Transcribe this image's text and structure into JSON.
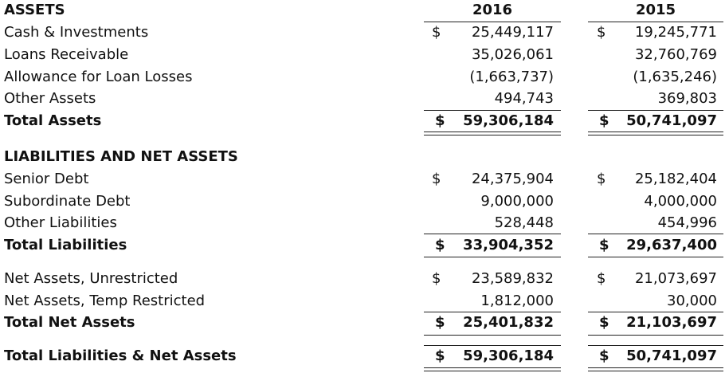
{
  "header": {
    "title": "ASSETS",
    "year1": "2016",
    "year2": "2015"
  },
  "assets": [
    {
      "label": "Cash & Investments",
      "v1": "25,449,117",
      "v2": "19,245,771",
      "dollar": true
    },
    {
      "label": "Loans Receivable",
      "v1": "35,026,061",
      "v2": "32,760,769"
    },
    {
      "label": "Allowance for Loan Losses",
      "v1": "(1,663,737)",
      "v2": "(1,635,246)"
    },
    {
      "label": "Other Assets",
      "v1": "494,743",
      "v2": "369,803"
    }
  ],
  "total_assets": {
    "label": "Total Assets",
    "v1": "59,306,184",
    "v2": "50,741,097"
  },
  "liabilities_heading": "LIABILITIES AND NET ASSETS",
  "liabilities": [
    {
      "label": "Senior Debt",
      "v1": "24,375,904",
      "v2": "25,182,404",
      "dollar": true
    },
    {
      "label": "Subordinate Debt",
      "v1": "9,000,000",
      "v2": "4,000,000"
    },
    {
      "label": "Other Liabilities",
      "v1": "528,448",
      "v2": "454,996"
    }
  ],
  "total_liabilities": {
    "label": "Total Liabilities",
    "v1": "33,904,352",
    "v2": "29,637,400"
  },
  "net_assets": [
    {
      "label": "Net Assets, Unrestricted",
      "v1": "23,589,832",
      "v2": "21,073,697",
      "dollar": true
    },
    {
      "label": "Net Assets, Temp Restricted",
      "v1": "1,812,000",
      "v2": "30,000"
    }
  ],
  "total_net_assets": {
    "label": "Total Net Assets",
    "v1": "25,401,832",
    "v2": "21,103,697"
  },
  "total_liab_net": {
    "label": "Total Liabilities & Net Assets",
    "v1": "59,306,184",
    "v2": "50,741,097"
  },
  "currency_symbol": "$"
}
